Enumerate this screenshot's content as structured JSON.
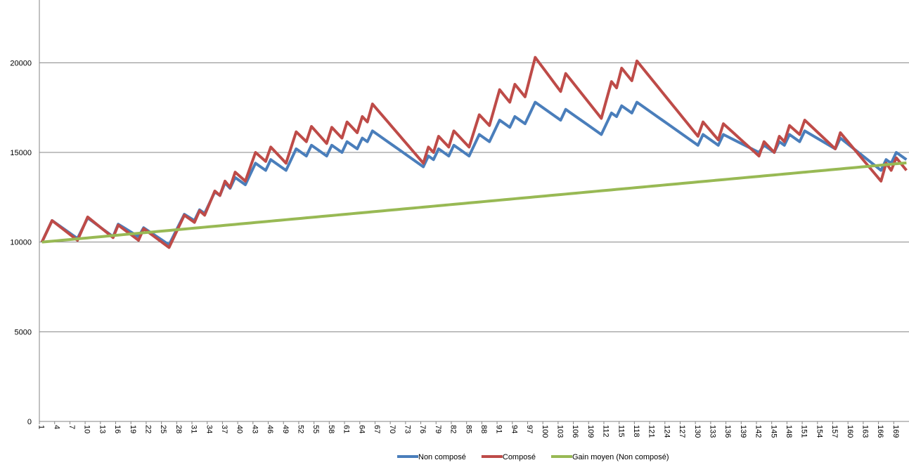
{
  "chart_data": {
    "type": "line",
    "categories": [
      1,
      null,
      null,
      4,
      null,
      null,
      7,
      null,
      null,
      10,
      null,
      null,
      13,
      null,
      null,
      16,
      null,
      null,
      19,
      null,
      null,
      22,
      null,
      null,
      25,
      null,
      null,
      28,
      null,
      null,
      31,
      null,
      null,
      34,
      null,
      null,
      37,
      null,
      null,
      40,
      null,
      null,
      43,
      null,
      null,
      46,
      null,
      null,
      49,
      null,
      null,
      52,
      null,
      null,
      55,
      null,
      null,
      58,
      null,
      null,
      61,
      null,
      null,
      64,
      null,
      null,
      67,
      null,
      null,
      70,
      null,
      null,
      73,
      null,
      null,
      76,
      null,
      null,
      79,
      null,
      null,
      82,
      null,
      null,
      85,
      null,
      null,
      88,
      null,
      null,
      91,
      null,
      null,
      94,
      null,
      null,
      97,
      null,
      null,
      100,
      null,
      null,
      103,
      null,
      null,
      106,
      null,
      null,
      109,
      null,
      null,
      112,
      null,
      null,
      115,
      null,
      null,
      118,
      null,
      null,
      121,
      null,
      null,
      124,
      null,
      null,
      127,
      null,
      null,
      130,
      null,
      null,
      133,
      null,
      null,
      136,
      null,
      null,
      139,
      null,
      null,
      142,
      null,
      null,
      145,
      null,
      null,
      148,
      null,
      null,
      151,
      null,
      null,
      154,
      null,
      null,
      157,
      null,
      null,
      160,
      null,
      null,
      163,
      null,
      null,
      166,
      null,
      null,
      169,
      null,
      null
    ],
    "series": [
      {
        "name": "Non composé",
        "color": "#4a7ebb",
        "values": [
          10000,
          10600,
          11200,
          11000,
          10800,
          10600,
          10400,
          10200,
          10775,
          11350,
          11140,
          10930,
          10720,
          10510,
          10300,
          11000,
          10825,
          10650,
          10475,
          10300,
          10800,
          10610,
          10420,
          10230,
          10040,
          9850,
          10417,
          10983,
          11550,
          11375,
          11200,
          11800,
          11600,
          12200,
          12800,
          12600,
          13300,
          13000,
          13600,
          13400,
          13200,
          13800,
          14400,
          14200,
          14000,
          14600,
          14400,
          14200,
          14000,
          14600,
          15200,
          15000,
          14800,
          15400,
          15200,
          15000,
          14800,
          15400,
          15200,
          15000,
          15600,
          15400,
          15200,
          15800,
          15600,
          16200,
          16000,
          15800,
          15600,
          15400,
          15200,
          15000,
          14800,
          14600,
          14400,
          14200,
          14800,
          14600,
          15200,
          15000,
          14800,
          15400,
          15200,
          15000,
          14800,
          15400,
          16000,
          15800,
          15600,
          16200,
          16800,
          16600,
          16400,
          17000,
          16800,
          16600,
          17200,
          17800,
          17600,
          17400,
          17200,
          17000,
          16800,
          17400,
          17200,
          17000,
          16800,
          16600,
          16400,
          16200,
          16000,
          16600,
          17200,
          17000,
          17600,
          17400,
          17200,
          17800,
          17600,
          17400,
          17200,
          17000,
          16800,
          16600,
          16400,
          16200,
          16000,
          15800,
          15600,
          15400,
          16000,
          15800,
          15600,
          15400,
          16000,
          15857,
          15714,
          15571,
          15429,
          15286,
          15143,
          15000,
          15400,
          15200,
          15000,
          15600,
          15400,
          16000,
          15800,
          15600,
          16200,
          16033,
          15867,
          15700,
          15533,
          15367,
          15200,
          15800,
          15575,
          15350,
          15125,
          14900,
          14675,
          14450,
          14225,
          14000,
          14600,
          14400,
          15000,
          14800,
          14600
        ]
      },
      {
        "name": "Composé",
        "color": "#be4b48",
        "values": [
          10000,
          10600,
          11200,
          10980,
          10760,
          10540,
          10320,
          10100,
          10750,
          11400,
          11170,
          10940,
          10710,
          10480,
          10250,
          10950,
          10738,
          10525,
          10313,
          10100,
          10750,
          10540,
          10330,
          10120,
          9910,
          9700,
          10300,
          10900,
          11500,
          11300,
          11100,
          11750,
          11500,
          12175,
          12850,
          12600,
          13400,
          13050,
          13900,
          13650,
          13400,
          14200,
          15000,
          14750,
          14500,
          15300,
          15000,
          14700,
          14400,
          15275,
          16150,
          15875,
          15600,
          16450,
          16133,
          15817,
          15500,
          16400,
          16100,
          15800,
          16700,
          16400,
          16100,
          17000,
          16700,
          17700,
          17370,
          17040,
          16710,
          16380,
          16050,
          15720,
          15390,
          15060,
          14730,
          14400,
          15300,
          15000,
          15900,
          15600,
          15300,
          16200,
          15900,
          15600,
          15300,
          16200,
          17100,
          16800,
          16500,
          17500,
          18500,
          18150,
          17800,
          18800,
          18450,
          18100,
          19200,
          20300,
          19920,
          19540,
          19160,
          18780,
          18400,
          19400,
          19043,
          18686,
          18329,
          17971,
          17614,
          17257,
          16900,
          17925,
          18950,
          18600,
          19700,
          19350,
          19000,
          20100,
          19750,
          19400,
          19050,
          18700,
          18350,
          18000,
          17650,
          17300,
          16950,
          16600,
          16250,
          15900,
          16700,
          16367,
          16033,
          15700,
          16600,
          16343,
          16086,
          15829,
          15571,
          15314,
          15057,
          14800,
          15600,
          15300,
          15000,
          15900,
          15600,
          16500,
          16250,
          16000,
          16800,
          16533,
          16267,
          16000,
          15733,
          15467,
          15200,
          16100,
          15763,
          15425,
          15088,
          14750,
          14413,
          14075,
          13738,
          13400,
          14400,
          14000,
          14700,
          14350,
          14000
        ]
      },
      {
        "name": "Gain moyen (Non composé)",
        "color": "#98b954",
        "values": [
          10000,
          10026,
          10052,
          10078,
          10104,
          10130,
          10156,
          10182,
          10208,
          10234,
          10260,
          10286,
          10312,
          10338,
          10364,
          10390,
          10416,
          10442,
          10468,
          10494,
          10520,
          10546,
          10572,
          10598,
          10624,
          10650,
          10676,
          10702,
          10728,
          10754,
          10780,
          10806,
          10832,
          10858,
          10884,
          10910,
          10936,
          10962,
          10988,
          11014,
          11040,
          11066,
          11092,
          11118,
          11144,
          11170,
          11196,
          11222,
          11248,
          11274,
          11300,
          11326,
          11352,
          11378,
          11404,
          11430,
          11456,
          11482,
          11508,
          11534,
          11560,
          11586,
          11612,
          11638,
          11664,
          11690,
          11716,
          11742,
          11768,
          11794,
          11820,
          11846,
          11872,
          11898,
          11924,
          11950,
          11976,
          12002,
          12028,
          12054,
          12080,
          12106,
          12132,
          12158,
          12184,
          12210,
          12236,
          12262,
          12288,
          12314,
          12340,
          12366,
          12392,
          12418,
          12444,
          12470,
          12496,
          12522,
          12548,
          12574,
          12600,
          12626,
          12652,
          12678,
          12704,
          12730,
          12756,
          12782,
          12808,
          12834,
          12860,
          12886,
          12912,
          12938,
          12964,
          12990,
          13016,
          13042,
          13068,
          13094,
          13120,
          13146,
          13172,
          13198,
          13224,
          13250,
          13276,
          13302,
          13328,
          13354,
          13380,
          13406,
          13432,
          13458,
          13484,
          13510,
          13536,
          13562,
          13588,
          13614,
          13640,
          13666,
          13692,
          13718,
          13744,
          13770,
          13796,
          13822,
          13848,
          13874,
          13900,
          13926,
          13952,
          13978,
          14004,
          14030,
          14056,
          14082,
          14108,
          14134,
          14160,
          14186,
          14212,
          14238,
          14264,
          14290,
          14316,
          14342,
          14368,
          14394,
          14420
        ]
      }
    ],
    "ylim": [
      0,
      23500
    ],
    "yticks": [
      0,
      5000,
      10000,
      15000,
      20000
    ],
    "grid": true,
    "legend": "bottom"
  }
}
